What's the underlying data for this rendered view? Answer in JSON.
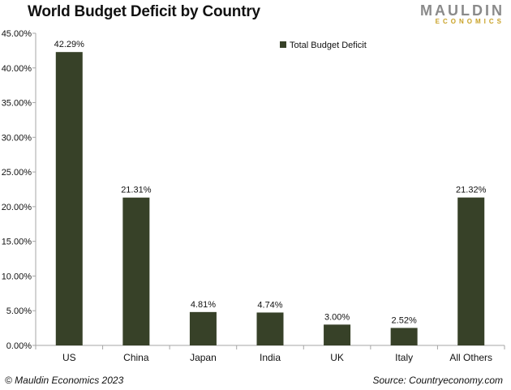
{
  "title": "World Budget Deficit by Country",
  "logo": {
    "line1": "MAULDIN",
    "line2": "ECONOMICS"
  },
  "footer": {
    "copyright": "© Mauldin Economics 2023",
    "source": "Source: Countryeconomy.com"
  },
  "colors": {
    "bar": "#374128",
    "axis": "#a6a6a6"
  },
  "chart_data": {
    "type": "bar",
    "categories": [
      "US",
      "China",
      "Japan",
      "India",
      "UK",
      "Italy",
      "All Others"
    ],
    "series": [
      {
        "name": "Total Budget Deficit",
        "values": [
          42.29,
          21.31,
          4.81,
          4.74,
          3.0,
          2.52,
          21.32
        ]
      }
    ],
    "data_labels": [
      "42.29%",
      "21.31%",
      "4.81%",
      "4.74%",
      "3.00%",
      "2.52%",
      "21.32%"
    ],
    "yticks": [
      "0.00%",
      "5.00%",
      "10.00%",
      "15.00%",
      "20.00%",
      "25.00%",
      "30.00%",
      "35.00%",
      "40.00%",
      "45.00%"
    ],
    "ylim": [
      0,
      45
    ],
    "grid": false,
    "legend": "top-right"
  }
}
